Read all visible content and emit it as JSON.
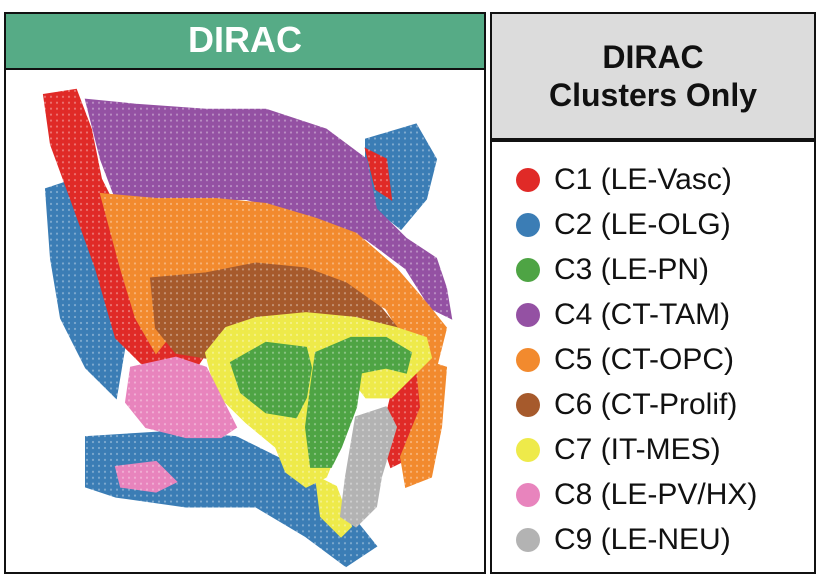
{
  "left_panel": {
    "title": "DIRAC",
    "header_color": "#56ab86"
  },
  "right_panel": {
    "title_line1": "DIRAC",
    "title_line2": "Clusters Only",
    "header_color": "#dcdcdc"
  },
  "chart_data": {
    "type": "scatter",
    "title": "DIRAC",
    "description_of_marks": "spatial spots colored by cluster",
    "legend": [
      {
        "id": "C1",
        "label": "C1 (LE-Vasc)",
        "color": "#e02a27"
      },
      {
        "id": "C2",
        "label": "C2 (LE-OLG)",
        "color": "#3b7db5"
      },
      {
        "id": "C3",
        "label": "C3 (LE-PN)",
        "color": "#4ea444"
      },
      {
        "id": "C4",
        "label": "C4 (CT-TAM)",
        "color": "#9451a3"
      },
      {
        "id": "C5",
        "label": "C5 (CT-OPC)",
        "color": "#f28a2e"
      },
      {
        "id": "C6",
        "label": "C6 (CT-Prolif)",
        "color": "#a65a2c"
      },
      {
        "id": "C7",
        "label": "C7 (IT-MES)",
        "color": "#eeea4a"
      },
      {
        "id": "C8",
        "label": "C8 (LE-PV/HX)",
        "color": "#e884bd"
      },
      {
        "id": "C9",
        "label": "C9 (LE-NEU)",
        "color": "#b3b3b3"
      }
    ]
  }
}
